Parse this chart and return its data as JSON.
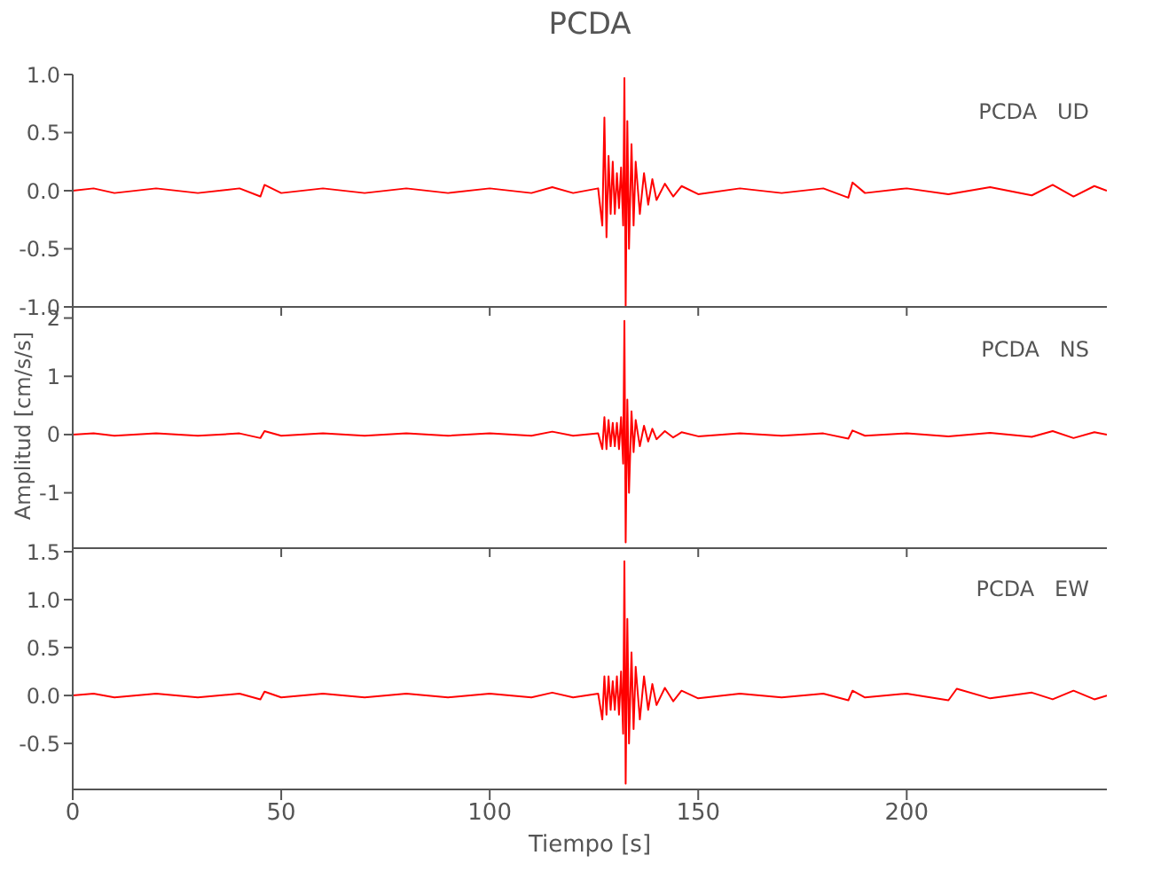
{
  "chart_data": [
    {
      "type": "line",
      "title": "PCDA",
      "ylabel": "Amplitud [cm/s/s]",
      "annotations": [
        "PCDA   UD"
      ],
      "tick_labels": "y",
      "xlim": [
        0,
        248
      ],
      "xticks": [
        0,
        50,
        100,
        150,
        200
      ],
      "ylim": [
        -1,
        1
      ],
      "yticks": [
        {
          "value": -1,
          "label": "-1.0"
        },
        {
          "value": -0.5,
          "label": "-0.5"
        },
        {
          "value": 0,
          "label": "0.0"
        },
        {
          "value": 0.5,
          "label": "0.5"
        },
        {
          "value": 1,
          "label": "1.0"
        }
      ],
      "series": [
        {
          "color": "#ff0000",
          "x": [
            0,
            5,
            10,
            20,
            30,
            40,
            45,
            46,
            50,
            60,
            70,
            80,
            90,
            100,
            110,
            115,
            120,
            126,
            127,
            127.5,
            128,
            128.5,
            129,
            129.5,
            130,
            130.5,
            131,
            131.5,
            132,
            132.3,
            132.6,
            133,
            133.4,
            134,
            134.5,
            135,
            136,
            137,
            138,
            139,
            140,
            142,
            144,
            146,
            150,
            160,
            170,
            180,
            186,
            187,
            190,
            200,
            210,
            220,
            230,
            235,
            240,
            245,
            248
          ],
          "values": [
            0,
            0.02,
            -0.02,
            0.02,
            -0.02,
            0.02,
            -0.05,
            0.05,
            -0.02,
            0.02,
            -0.02,
            0.02,
            -0.02,
            0.02,
            -0.02,
            0.03,
            -0.02,
            0.02,
            -0.3,
            0.63,
            -0.4,
            0.3,
            -0.2,
            0.25,
            -0.2,
            0.15,
            -0.15,
            0.2,
            -0.3,
            0.97,
            -0.99,
            0.6,
            -0.5,
            0.4,
            -0.3,
            0.25,
            -0.2,
            0.15,
            -0.12,
            0.1,
            -0.08,
            0.06,
            -0.05,
            0.04,
            -0.03,
            0.02,
            -0.02,
            0.02,
            -0.06,
            0.07,
            -0.02,
            0.02,
            -0.03,
            0.03,
            -0.04,
            0.05,
            -0.05,
            0.04,
            0
          ]
        }
      ]
    },
    {
      "type": "line",
      "annotations": [
        "PCDA   NS"
      ],
      "tick_labels": "y",
      "xlim": [
        0,
        248
      ],
      "xticks": [
        0,
        50,
        100,
        150,
        200
      ],
      "ylim": [
        -1.95,
        2.1
      ],
      "yticks": [
        -1,
        0,
        1,
        2
      ],
      "series": [
        {
          "color": "#ff0000",
          "x": [
            0,
            5,
            10,
            20,
            30,
            40,
            45,
            46,
            50,
            60,
            70,
            80,
            90,
            100,
            110,
            115,
            120,
            126,
            127,
            127.5,
            128,
            128.5,
            129,
            129.5,
            130,
            130.5,
            131,
            131.5,
            132,
            132.3,
            132.6,
            133,
            133.4,
            134,
            134.5,
            135,
            136,
            137,
            138,
            139,
            140,
            142,
            144,
            146,
            150,
            160,
            170,
            180,
            186,
            187,
            190,
            200,
            210,
            220,
            230,
            235,
            240,
            245,
            248
          ],
          "values": [
            0,
            0.02,
            -0.02,
            0.02,
            -0.02,
            0.02,
            -0.06,
            0.06,
            -0.02,
            0.02,
            -0.02,
            0.02,
            -0.02,
            0.02,
            -0.02,
            0.05,
            -0.02,
            0.02,
            -0.25,
            0.3,
            -0.25,
            0.25,
            -0.2,
            0.2,
            -0.2,
            0.2,
            -0.25,
            0.3,
            -0.5,
            1.95,
            -1.85,
            0.6,
            -1.0,
            0.4,
            -0.3,
            0.25,
            -0.2,
            0.15,
            -0.12,
            0.1,
            -0.08,
            0.06,
            -0.05,
            0.04,
            -0.03,
            0.02,
            -0.02,
            0.02,
            -0.07,
            0.07,
            -0.02,
            0.02,
            -0.03,
            0.03,
            -0.04,
            0.06,
            -0.06,
            0.04,
            0
          ]
        }
      ]
    },
    {
      "type": "line",
      "xlabel": "Tiempo [s]",
      "annotations": [
        "PCDA   EW"
      ],
      "xlim": [
        0,
        248
      ],
      "xticks": [
        0,
        50,
        100,
        150,
        200
      ],
      "ylim": [
        -0.98,
        1.5
      ],
      "yticks": [
        {
          "value": -0.5,
          "label": "-0.5"
        },
        {
          "value": 0,
          "label": "0.0"
        },
        {
          "value": 0.5,
          "label": "0.5"
        },
        {
          "value": 1,
          "label": "1.0"
        },
        {
          "value": 1.5,
          "label": "1.5"
        }
      ],
      "series": [
        {
          "color": "#ff0000",
          "x": [
            0,
            5,
            10,
            20,
            30,
            40,
            45,
            46,
            50,
            60,
            70,
            80,
            90,
            100,
            110,
            115,
            120,
            126,
            127,
            127.5,
            128,
            128.5,
            129,
            129.5,
            130,
            130.5,
            131,
            131.5,
            132,
            132.3,
            132.6,
            133,
            133.4,
            134,
            134.5,
            135,
            136,
            137,
            138,
            139,
            140,
            142,
            144,
            146,
            150,
            160,
            170,
            180,
            186,
            187,
            190,
            200,
            210,
            212,
            220,
            230,
            235,
            240,
            245,
            248
          ],
          "values": [
            0,
            0.02,
            -0.02,
            0.02,
            -0.02,
            0.02,
            -0.04,
            0.04,
            -0.02,
            0.02,
            -0.02,
            0.02,
            -0.02,
            0.02,
            -0.02,
            0.03,
            -0.02,
            0.02,
            -0.25,
            0.2,
            -0.2,
            0.2,
            -0.15,
            0.15,
            -0.15,
            0.2,
            -0.2,
            0.25,
            -0.4,
            1.4,
            -0.92,
            0.8,
            -0.5,
            0.45,
            -0.35,
            0.3,
            -0.25,
            0.2,
            -0.15,
            0.12,
            -0.1,
            0.08,
            -0.06,
            0.05,
            -0.03,
            0.02,
            -0.02,
            0.02,
            -0.05,
            0.05,
            -0.02,
            0.02,
            -0.05,
            0.07,
            -0.03,
            0.03,
            -0.04,
            0.05,
            -0.04,
            0
          ]
        }
      ]
    }
  ]
}
